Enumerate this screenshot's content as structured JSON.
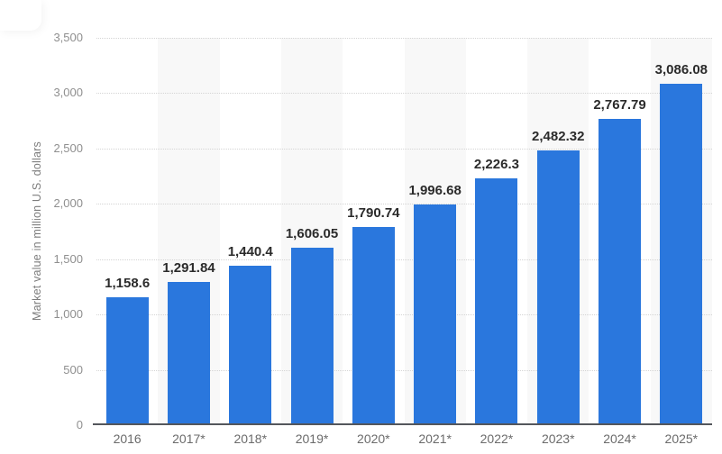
{
  "chart_data": {
    "type": "bar",
    "categories": [
      "2016",
      "2017*",
      "2018*",
      "2019*",
      "2020*",
      "2021*",
      "2022*",
      "2023*",
      "2024*",
      "2025*"
    ],
    "values": [
      1158.6,
      1291.84,
      1440.4,
      1606.05,
      1790.74,
      1996.68,
      2226.3,
      2482.32,
      2767.79,
      3086.08
    ],
    "value_labels": [
      "1,158.6",
      "1,291.84",
      "1,440.4",
      "1,606.05",
      "1,790.74",
      "1,996.68",
      "2,226.3",
      "2,482.32",
      "2,767.79",
      "3,086.08"
    ],
    "title": "",
    "xlabel": "",
    "ylabel": "Market value in million U.S. dollars",
    "ylim": [
      0,
      3500
    ],
    "ytick_step": 500,
    "ytick_labels": [
      "0",
      "500",
      "1,000",
      "1,500",
      "2,000",
      "2,500",
      "3,000",
      "3,500"
    ],
    "grid": "horizontal-dotted",
    "legend": "none",
    "stripe_pattern": "alternating-columns-odd",
    "colors": {
      "bar": "#2a77dd",
      "value_label": "#2b2b2b",
      "axis_line": "#54575c",
      "gridline": "#d4d4d4",
      "y_tick_label": "#8f8f8f",
      "x_tick_label": "#6b6b6b",
      "column_stripe": "#f8f8f8",
      "background": "#ffffff"
    }
  }
}
